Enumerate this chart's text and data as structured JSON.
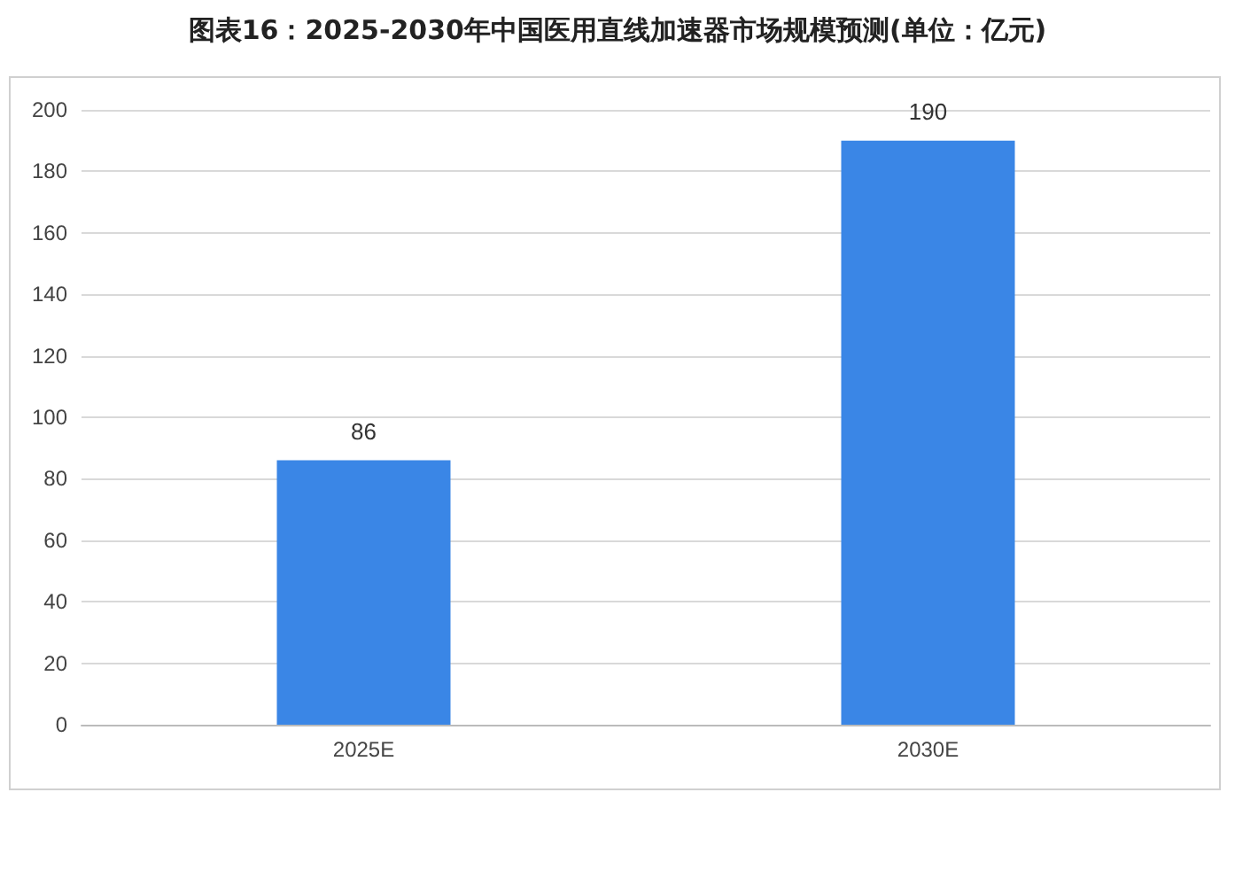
{
  "chart_data": {
    "type": "bar",
    "title": "图表16：2025-2030年中国医用直线加速器市场规模预测(单位：亿元)",
    "categories": [
      "2025E",
      "2030E"
    ],
    "values": [
      86,
      190
    ],
    "color": "#3a86e6",
    "ylim": [
      0,
      200
    ],
    "yticks": [
      0,
      20,
      40,
      60,
      80,
      100,
      120,
      140,
      160,
      180,
      200
    ],
    "grid": true,
    "data_labels": true
  }
}
